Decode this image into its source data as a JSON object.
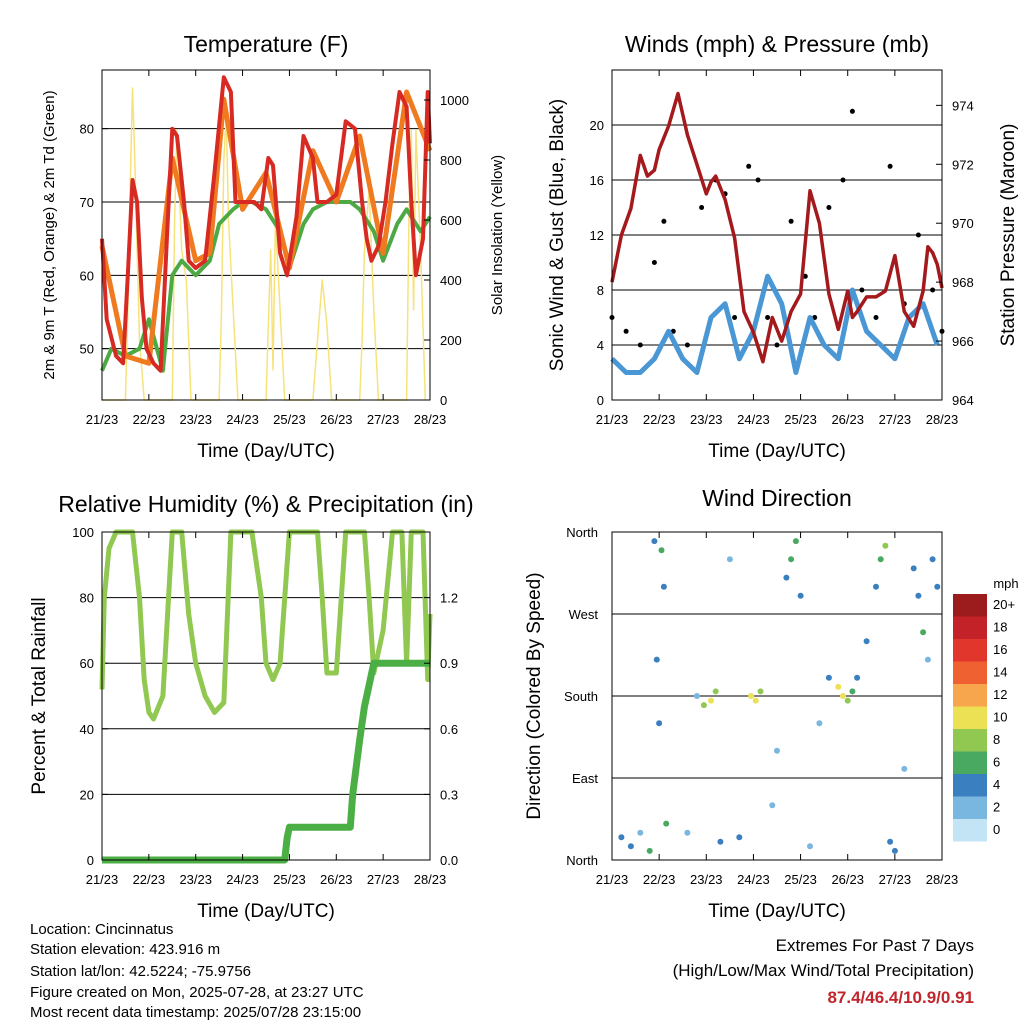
{
  "chart_data": [
    {
      "type": "line",
      "title": "Temperature (F)",
      "xlabel": "Time (Day/UTC)",
      "ylabel_left": "2m & 9m T (Red, Orange) & 2m Td (Green)",
      "ylabel_right": "Solar Insolation (Yellow)",
      "x_ticks": [
        "21/23",
        "22/23",
        "23/23",
        "24/23",
        "25/23",
        "26/23",
        "27/23",
        "28/23"
      ],
      "ylim": [
        43,
        88
      ],
      "y_ticks": [
        50,
        60,
        70,
        80
      ],
      "y2lim": [
        0,
        1100
      ],
      "y2_ticks": [
        0,
        200,
        400,
        600,
        800,
        1000
      ],
      "grid": "horizontal",
      "colors": {
        "t2m": "#d62a23",
        "t9m": "#f07a1f",
        "td": "#4ca943",
        "solar": "#f7e27a"
      },
      "series": [
        {
          "name": "2m T",
          "color": "#d62a23",
          "x": [
            0,
            0.1,
            0.3,
            0.45,
            0.55,
            0.65,
            0.75,
            0.85,
            0.95,
            1.1,
            1.25,
            1.4,
            1.5,
            1.6,
            1.75,
            1.85,
            2.0,
            2.2,
            2.4,
            2.6,
            2.75,
            2.85,
            2.95,
            3.1,
            3.25,
            3.4,
            3.55,
            3.65,
            3.8,
            3.95,
            4.15,
            4.3,
            4.5,
            4.6,
            4.7,
            4.8,
            5.0,
            5.2,
            5.4,
            5.55,
            5.65,
            5.75,
            5.9,
            6.05,
            6.2,
            6.35,
            6.5,
            6.6,
            6.7,
            6.85,
            6.95,
            7.0
          ],
          "y": [
            65,
            54,
            49,
            48,
            60,
            73,
            70,
            57,
            50,
            48,
            47,
            67,
            80,
            79,
            70,
            62,
            61,
            62,
            74,
            87,
            85,
            70,
            70,
            70,
            70,
            69,
            76,
            75,
            63,
            60,
            68,
            79,
            76,
            70,
            70,
            70,
            71,
            81,
            80,
            70,
            65,
            62,
            64,
            70,
            78,
            85,
            83,
            70,
            60,
            65,
            85,
            78
          ]
        },
        {
          "name": "9m T",
          "color": "#f07a1f",
          "x": [
            0,
            0.5,
            1.0,
            1.5,
            2.0,
            2.3,
            2.6,
            3.0,
            3.5,
            4.0,
            4.5,
            5.0,
            5.5,
            6.0,
            6.5,
            7.0
          ],
          "y": [
            64,
            49,
            48,
            76,
            62,
            63,
            84,
            69,
            74,
            61,
            77,
            70,
            79,
            63,
            85,
            77
          ]
        },
        {
          "name": "2m Td",
          "color": "#4ca943",
          "x": [
            0,
            0.2,
            0.5,
            0.8,
            1.0,
            1.3,
            1.5,
            1.7,
            2.0,
            2.3,
            2.5,
            2.8,
            3.0,
            3.2,
            3.5,
            3.8,
            4.0,
            4.3,
            4.5,
            4.8,
            5.0,
            5.3,
            5.5,
            5.8,
            6.0,
            6.3,
            6.5,
            6.8,
            7.0
          ],
          "y": [
            47,
            50,
            49,
            50,
            54,
            47,
            60,
            62,
            60,
            62,
            67,
            69,
            70,
            70,
            69,
            66,
            61,
            67,
            69,
            70,
            70,
            70,
            69,
            66,
            62,
            67,
            69,
            66,
            68
          ]
        },
        {
          "name": "Solar Insolation",
          "color": "#f7e27a",
          "axis": "right",
          "x": [
            0,
            0.5,
            0.55,
            0.6,
            0.65,
            0.7,
            0.75,
            0.8,
            0.9,
            1.5,
            1.55,
            1.6,
            1.7,
            1.8,
            1.9,
            2.5,
            2.55,
            2.6,
            2.65,
            2.7,
            2.8,
            2.9,
            3.5,
            3.6,
            3.65,
            3.7,
            3.8,
            3.9,
            4.5,
            4.6,
            4.7,
            4.8,
            4.9,
            5.5,
            5.55,
            5.6,
            5.7,
            5.8,
            5.9,
            6.5,
            6.55,
            6.6,
            6.65,
            6.7,
            6.8,
            6.9
          ],
          "y": [
            0,
            0,
            300,
            700,
            1040,
            800,
            500,
            200,
            0,
            0,
            600,
            900,
            500,
            400,
            0,
            0,
            300,
            800,
            950,
            600,
            300,
            0,
            0,
            500,
            100,
            600,
            300,
            0,
            0,
            200,
            400,
            250,
            0,
            0,
            200,
            500,
            700,
            300,
            0,
            0,
            600,
            900,
            300,
            900,
            500,
            0
          ]
        }
      ]
    },
    {
      "type": "scatter",
      "title": "Winds (mph) & Pressure (mb)",
      "xlabel": "Time (Day/UTC)",
      "ylabel_left": "Sonic Wind & Gust (Blue, Black)",
      "ylabel_right": "Station Pressure (Maroon)",
      "x_ticks": [
        "21/23",
        "22/23",
        "23/23",
        "24/23",
        "25/23",
        "26/23",
        "27/23",
        "28/23"
      ],
      "ylim": [
        0,
        24
      ],
      "y_ticks": [
        0,
        4,
        8,
        12,
        16,
        20
      ],
      "y2lim": [
        964,
        975.2
      ],
      "y2_ticks": [
        964,
        966,
        968,
        970,
        972,
        974
      ],
      "grid": "horizontal",
      "colors": {
        "wind": "#4a97d6",
        "gust": "#000000",
        "pressure": "#a3191c"
      },
      "series": [
        {
          "name": "Sonic Wind",
          "color": "#4a97d6",
          "x": [
            0,
            0.3,
            0.6,
            0.9,
            1.2,
            1.5,
            1.8,
            2.1,
            2.4,
            2.7,
            3.0,
            3.3,
            3.6,
            3.9,
            4.2,
            4.5,
            4.8,
            5.1,
            5.4,
            5.7,
            6.0,
            6.3,
            6.6,
            6.9
          ],
          "y": [
            3,
            2,
            2,
            3,
            5,
            3,
            2,
            6,
            7,
            3,
            5,
            9,
            7,
            2,
            6,
            4,
            3,
            8,
            5,
            4,
            3,
            6,
            7,
            4
          ]
        },
        {
          "name": "Gust",
          "color": "#000000",
          "x": [
            0,
            0.3,
            0.6,
            0.9,
            1.1,
            1.3,
            1.6,
            1.9,
            2.2,
            2.4,
            2.6,
            2.9,
            3.1,
            3.3,
            3.5,
            3.8,
            4.1,
            4.3,
            4.6,
            4.9,
            5.1,
            5.3,
            5.6,
            5.9,
            6.2,
            6.5,
            6.8,
            7.0
          ],
          "y": [
            6,
            5,
            4,
            10,
            13,
            5,
            4,
            14,
            16,
            15,
            6,
            17,
            16,
            6,
            4,
            13,
            9,
            6,
            14,
            16,
            21,
            8,
            6,
            17,
            7,
            12,
            8,
            5
          ]
        },
        {
          "name": "Station Pressure",
          "color": "#a3191c",
          "axis": "right",
          "x": [
            0,
            0.2,
            0.4,
            0.6,
            0.75,
            0.9,
            1.0,
            1.2,
            1.4,
            1.6,
            1.8,
            2.0,
            2.1,
            2.2,
            2.4,
            2.6,
            2.8,
            3.0,
            3.2,
            3.4,
            3.6,
            3.8,
            4.0,
            4.2,
            4.4,
            4.6,
            4.8,
            5.0,
            5.1,
            5.2,
            5.4,
            5.6,
            5.8,
            6.0,
            6.2,
            6.4,
            6.6,
            6.7,
            6.8,
            6.9,
            7.0
          ],
          "y": [
            968,
            969.6,
            970.5,
            972.3,
            971.6,
            971.8,
            972.5,
            973.3,
            974.4,
            973.0,
            972.0,
            971.0,
            971.4,
            971.6,
            970.8,
            969.5,
            967.0,
            966.3,
            965.3,
            966.8,
            966.0,
            967.0,
            967.6,
            971.1,
            970.0,
            967.6,
            966.4,
            967.7,
            966.8,
            967.0,
            967.5,
            967.5,
            967.7,
            968.9,
            967.0,
            966.5,
            967.7,
            969.2,
            969.0,
            968.6,
            967.8
          ]
        }
      ]
    },
    {
      "type": "line",
      "title": "Relative Humidity (%) & Precipitation (in)",
      "xlabel": "Time (Day/UTC)",
      "ylabel_left": "Percent & Total Rainfall",
      "x_ticks": [
        "21/23",
        "22/23",
        "23/23",
        "24/23",
        "25/23",
        "26/23",
        "27/23",
        "28/23"
      ],
      "ylim": [
        0,
        100
      ],
      "y_ticks": [
        0,
        20,
        40,
        60,
        80,
        100
      ],
      "y2lim": [
        0,
        1.5
      ],
      "y2_ticks": [
        "0.0",
        "0.3",
        "0.6",
        "0.9",
        "1.2"
      ],
      "grid": "horizontal",
      "colors": {
        "rh": "#91c852",
        "precip": "#4caf45"
      },
      "series": [
        {
          "name": "Relative Humidity",
          "color": "#91c852",
          "x": [
            0,
            0.05,
            0.15,
            0.3,
            0.5,
            0.65,
            0.8,
            0.9,
            1.0,
            1.1,
            1.3,
            1.5,
            1.6,
            1.7,
            1.85,
            2.0,
            2.2,
            2.4,
            2.6,
            2.75,
            2.85,
            3.0,
            3.2,
            3.4,
            3.5,
            3.65,
            3.8,
            4.0,
            4.2,
            4.4,
            4.5,
            4.6,
            4.7,
            4.8,
            5.0,
            5.2,
            5.4,
            5.5,
            5.6,
            5.7,
            5.8,
            6.0,
            6.2,
            6.4,
            6.5,
            6.6,
            6.7,
            6.85,
            6.95,
            7.0
          ],
          "y": [
            52,
            80,
            95,
            100,
            100,
            100,
            80,
            55,
            45,
            43,
            50,
            100,
            100,
            100,
            75,
            60,
            50,
            45,
            48,
            100,
            100,
            100,
            100,
            80,
            60,
            55,
            60,
            100,
            100,
            100,
            100,
            100,
            80,
            57,
            57,
            100,
            100,
            100,
            100,
            80,
            57,
            70,
            100,
            100,
            60,
            100,
            100,
            100,
            55,
            75
          ]
        },
        {
          "name": "Total Rainfall",
          "color": "#4caf45",
          "axis": "right",
          "x": [
            0,
            1.0,
            2.0,
            3.0,
            3.9,
            3.95,
            4.0,
            4.5,
            5.0,
            5.3,
            5.35,
            5.5,
            5.6,
            5.7,
            5.8,
            5.9,
            6.0,
            6.5,
            7.0
          ],
          "y": [
            0,
            0,
            0,
            0,
            0,
            0.1,
            0.15,
            0.15,
            0.15,
            0.15,
            0.3,
            0.55,
            0.7,
            0.8,
            0.9,
            0.9,
            0.9,
            0.9,
            0.9
          ]
        }
      ]
    },
    {
      "type": "scatter",
      "title": "Wind Direction",
      "xlabel": "Time (Day/UTC)",
      "ylabel": "Direction (Colored By Speed)",
      "x_ticks": [
        "21/23",
        "22/23",
        "23/23",
        "24/23",
        "25/23",
        "26/23",
        "27/23",
        "28/23"
      ],
      "y_categories": [
        "North",
        "East",
        "South",
        "West",
        "North"
      ],
      "ylim": [
        0,
        360
      ],
      "grid": "horizontal",
      "legend": {
        "position": "right",
        "title": "mph",
        "labels": [
          "20+",
          "18",
          "16",
          "14",
          "12",
          "10",
          "8",
          "6",
          "4",
          "2",
          "0"
        ],
        "colors": [
          "#9c1c1e",
          "#c42229",
          "#e0362b",
          "#ef6130",
          "#f7a64e",
          "#ece054",
          "#91c852",
          "#4aa961",
          "#3a7fbf",
          "#7ab7e0",
          "#c3e4f5"
        ]
      },
      "points": [
        {
          "x": 0.2,
          "y": 25,
          "v": 3
        },
        {
          "x": 0.4,
          "y": 15,
          "v": 4
        },
        {
          "x": 0.6,
          "y": 30,
          "v": 2
        },
        {
          "x": 0.8,
          "y": 10,
          "v": 5
        },
        {
          "x": 0.9,
          "y": 350,
          "v": 3
        },
        {
          "x": 0.95,
          "y": 220,
          "v": 4
        },
        {
          "x": 1.0,
          "y": 150,
          "v": 3
        },
        {
          "x": 1.05,
          "y": 340,
          "v": 6
        },
        {
          "x": 1.1,
          "y": 300,
          "v": 4
        },
        {
          "x": 1.15,
          "y": 40,
          "v": 5
        },
        {
          "x": 1.6,
          "y": 30,
          "v": 2
        },
        {
          "x": 1.8,
          "y": 180,
          "v": 1
        },
        {
          "x": 1.95,
          "y": 170,
          "v": 8
        },
        {
          "x": 2.1,
          "y": 175,
          "v": 9
        },
        {
          "x": 2.2,
          "y": 185,
          "v": 7
        },
        {
          "x": 2.3,
          "y": 20,
          "v": 3
        },
        {
          "x": 2.5,
          "y": 330,
          "v": 1
        },
        {
          "x": 2.7,
          "y": 25,
          "v": 4
        },
        {
          "x": 2.95,
          "y": 180,
          "v": 9
        },
        {
          "x": 3.05,
          "y": 175,
          "v": 10
        },
        {
          "x": 3.15,
          "y": 185,
          "v": 8
        },
        {
          "x": 3.4,
          "y": 60,
          "v": 2
        },
        {
          "x": 3.5,
          "y": 120,
          "v": 1
        },
        {
          "x": 3.7,
          "y": 310,
          "v": 4
        },
        {
          "x": 3.8,
          "y": 330,
          "v": 5
        },
        {
          "x": 3.9,
          "y": 350,
          "v": 6
        },
        {
          "x": 4.0,
          "y": 290,
          "v": 3
        },
        {
          "x": 4.2,
          "y": 15,
          "v": 2
        },
        {
          "x": 4.4,
          "y": 150,
          "v": 1
        },
        {
          "x": 4.6,
          "y": 200,
          "v": 3
        },
        {
          "x": 4.8,
          "y": 190,
          "v": 9
        },
        {
          "x": 4.9,
          "y": 180,
          "v": 10
        },
        {
          "x": 5.0,
          "y": 175,
          "v": 7
        },
        {
          "x": 5.1,
          "y": 185,
          "v": 6
        },
        {
          "x": 5.2,
          "y": 200,
          "v": 4
        },
        {
          "x": 5.4,
          "y": 240,
          "v": 3
        },
        {
          "x": 5.6,
          "y": 300,
          "v": 4
        },
        {
          "x": 5.7,
          "y": 330,
          "v": 6
        },
        {
          "x": 5.8,
          "y": 345,
          "v": 7
        },
        {
          "x": 5.9,
          "y": 20,
          "v": 4
        },
        {
          "x": 6.0,
          "y": 10,
          "v": 3
        },
        {
          "x": 6.2,
          "y": 100,
          "v": 1
        },
        {
          "x": 6.4,
          "y": 320,
          "v": 4
        },
        {
          "x": 6.5,
          "y": 290,
          "v": 3
        },
        {
          "x": 6.6,
          "y": 250,
          "v": 5
        },
        {
          "x": 6.7,
          "y": 220,
          "v": 2
        },
        {
          "x": 6.8,
          "y": 330,
          "v": 4
        },
        {
          "x": 6.9,
          "y": 300,
          "v": 3
        }
      ]
    }
  ],
  "info": {
    "location": "Location: Cincinnatus",
    "elevation": "Station elevation: 423.916 m",
    "latlon": "Station lat/lon: 42.5224; -75.9756",
    "created": "Figure created on Mon, 2025-07-28, at 23:27 UTC",
    "recent": "Most recent data timestamp: 2025/07/28 23:15:00"
  },
  "extremes": {
    "title": "Extremes For Past 7 Days",
    "subtitle": "(High/Low/Max Wind/Total Precipitation)",
    "values": "87.4/46.4/10.9/0.91"
  }
}
